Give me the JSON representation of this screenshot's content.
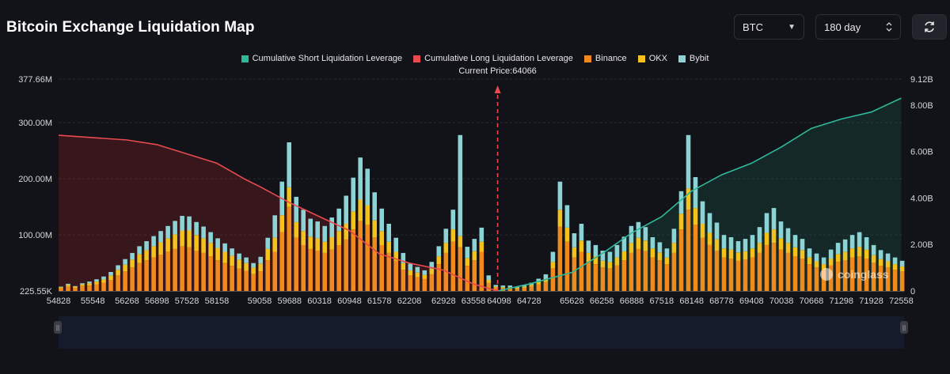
{
  "title": "Bitcoin Exchange Liquidation Map",
  "controls": {
    "coin": "BTC",
    "period": "180 day"
  },
  "icons": {
    "coin_dropdown": "caret-down-icon",
    "period_stepper": "chevron-up-down-icon",
    "refresh": "refresh-icon"
  },
  "colors": {
    "short_cumulative": "#2fb89a",
    "long_cumulative": "#e84a4f",
    "binance": "#f08a1c",
    "okx": "#f4c21c",
    "bybit": "#8cd3d6",
    "background": "#121318"
  },
  "watermark": "coinglass",
  "chart_data": {
    "type": "bar",
    "current_price_label": "Current Price:64066",
    "current_price": 64066,
    "legend": [
      {
        "name": "Cumulative Short Liquidation Leverage",
        "color": "#2fb89a"
      },
      {
        "name": "Cumulative Long Liquidation Leverage",
        "color": "#e84a4f"
      },
      {
        "name": "Binance",
        "color": "#f08a1c"
      },
      {
        "name": "OKX",
        "color": "#f4c21c"
      },
      {
        "name": "Bybit",
        "color": "#8cd3d6"
      }
    ],
    "x_range": [
      54828,
      72618
    ],
    "x_tick_labels": [
      "54828",
      "55548",
      "56268",
      "56898",
      "57528",
      "58158",
      "59058",
      "59688",
      "60318",
      "60948",
      "61578",
      "62208",
      "62928",
      "63558",
      "64098",
      "64728",
      "65628",
      "66258",
      "66888",
      "67518",
      "68148",
      "68778",
      "69408",
      "70038",
      "70668",
      "71298",
      "71928",
      "72558"
    ],
    "y_left_ticks": [
      "225.55K",
      "100.00M",
      "200.00M",
      "300.00M",
      "377.66M"
    ],
    "y_left_range": [
      225550,
      377660000
    ],
    "y_right_ticks": [
      "0",
      "2.00B",
      "4.00B",
      "6.00B",
      "8.00B",
      "9.12B"
    ],
    "y_right_range": [
      0,
      9120000000
    ],
    "stacked_series": [
      {
        "name": "Binance",
        "key": "binance"
      },
      {
        "name": "OKX",
        "key": "okx"
      },
      {
        "name": "Bybit",
        "key": "bybit"
      }
    ],
    "price_levels": [
      54878,
      55028,
      55178,
      55328,
      55478,
      55628,
      55778,
      55928,
      56078,
      56228,
      56378,
      56528,
      56678,
      56828,
      56978,
      57128,
      57278,
      57428,
      57578,
      57728,
      57878,
      58028,
      58178,
      58328,
      58478,
      58628,
      58778,
      58928,
      59078,
      59228,
      59378,
      59528,
      59678,
      59828,
      59978,
      60128,
      60278,
      60428,
      60578,
      60728,
      60878,
      61028,
      61178,
      61328,
      61478,
      61628,
      61778,
      61928,
      62078,
      62228,
      62378,
      62528,
      62678,
      62828,
      62978,
      63128,
      63278,
      63428,
      63578,
      63728,
      63878,
      64028,
      64178,
      64328,
      64478,
      64628,
      64778,
      64928,
      65078,
      65228,
      65378,
      65528,
      65678,
      65828,
      65978,
      66128,
      66278,
      66428,
      66578,
      66728,
      66878,
      67028,
      67178,
      67328,
      67478,
      67628,
      67778,
      67928,
      68078,
      68228,
      68378,
      68528,
      68678,
      68828,
      68978,
      69128,
      69278,
      69428,
      69578,
      69728,
      69878,
      70028,
      70178,
      70328,
      70478,
      70628,
      70778,
      70928,
      71078,
      71228,
      71378,
      71528,
      71678,
      71828,
      71978,
      72128,
      72278,
      72428,
      72578
    ],
    "values_m": {
      "binance": [
        5,
        8,
        6,
        9,
        10,
        12,
        15,
        20,
        28,
        35,
        42,
        50,
        55,
        60,
        65,
        70,
        75,
        80,
        78,
        72,
        68,
        62,
        55,
        50,
        45,
        40,
        36,
        30,
        35,
        55,
        70,
        105,
        150,
        95,
        82,
        75,
        72,
        68,
        74,
        82,
        92,
        110,
        125,
        118,
        96,
        82,
        68,
        54,
        38,
        28,
        25,
        22,
        30,
        48,
        68,
        88,
        78,
        45,
        55,
        70,
        15,
        6,
        5,
        5,
        4,
        6,
        8,
        12,
        16,
        40,
        115,
        88,
        60,
        70,
        52,
        48,
        42,
        40,
        46,
        55,
        68,
        75,
        72,
        60,
        55,
        48,
        68,
        110,
        145,
        118,
        95,
        82,
        72,
        60,
        58,
        54,
        56,
        60,
        68,
        82,
        86,
        74,
        68,
        62,
        58,
        48,
        42,
        38,
        46,
        52,
        55,
        60,
        62,
        58,
        50,
        45,
        42,
        38,
        35
      ],
      "okx": [
        2,
        3,
        2,
        3,
        4,
        5,
        6,
        8,
        10,
        12,
        14,
        16,
        18,
        20,
        22,
        24,
        26,
        28,
        30,
        28,
        26,
        24,
        22,
        20,
        18,
        16,
        14,
        12,
        14,
        20,
        25,
        30,
        35,
        28,
        25,
        22,
        22,
        20,
        22,
        25,
        28,
        32,
        38,
        35,
        30,
        25,
        20,
        16,
        12,
        9,
        8,
        7,
        10,
        14,
        18,
        22,
        20,
        14,
        16,
        18,
        5,
        2,
        2,
        2,
        2,
        2,
        3,
        4,
        6,
        12,
        30,
        25,
        18,
        20,
        16,
        14,
        12,
        12,
        14,
        16,
        18,
        20,
        18,
        16,
        14,
        12,
        18,
        28,
        38,
        30,
        25,
        22,
        20,
        16,
        16,
        15,
        15,
        16,
        18,
        22,
        24,
        20,
        18,
        16,
        15,
        12,
        11,
        10,
        12,
        14,
        15,
        16,
        17,
        16,
        14,
        12,
        11,
        10,
        9
      ],
      "bybit": [
        1,
        2,
        1,
        2,
        3,
        4,
        5,
        6,
        8,
        10,
        12,
        14,
        16,
        18,
        20,
        22,
        24,
        26,
        25,
        23,
        21,
        19,
        17,
        15,
        13,
        11,
        10,
        8,
        12,
        20,
        40,
        60,
        80,
        45,
        38,
        32,
        30,
        28,
        35,
        40,
        50,
        60,
        75,
        65,
        50,
        40,
        32,
        25,
        18,
        12,
        10,
        8,
        12,
        18,
        25,
        35,
        180,
        20,
        22,
        25,
        8,
        3,
        3,
        3,
        2,
        3,
        4,
        6,
        8,
        18,
        50,
        40,
        25,
        30,
        22,
        20,
        18,
        18,
        22,
        26,
        30,
        28,
        24,
        20,
        18,
        16,
        25,
        40,
        95,
        55,
        40,
        35,
        30,
        24,
        22,
        20,
        22,
        24,
        28,
        35,
        38,
        30,
        26,
        22,
        20,
        16,
        14,
        12,
        16,
        20,
        22,
        24,
        26,
        22,
        18,
        16,
        14,
        12,
        10
      ]
    },
    "cumulative_long_b": [
      [
        54828,
        6.7
      ],
      [
        55548,
        6.6
      ],
      [
        56268,
        6.5
      ],
      [
        56898,
        6.3
      ],
      [
        57528,
        5.9
      ],
      [
        58158,
        5.5
      ],
      [
        58758,
        4.8
      ],
      [
        59058,
        4.5
      ],
      [
        59688,
        3.8
      ],
      [
        60318,
        3.2
      ],
      [
        60948,
        2.6
      ],
      [
        61578,
        1.6
      ],
      [
        62208,
        1.2
      ],
      [
        62928,
        0.9
      ],
      [
        63558,
        0.3
      ],
      [
        64066,
        0
      ]
    ],
    "cumulative_short_b": [
      [
        64066,
        0
      ],
      [
        64728,
        0.3
      ],
      [
        65628,
        0.8
      ],
      [
        66258,
        1.6
      ],
      [
        66888,
        2.5
      ],
      [
        67518,
        3.2
      ],
      [
        68148,
        4.3
      ],
      [
        68778,
        5.0
      ],
      [
        69408,
        5.5
      ],
      [
        70038,
        6.2
      ],
      [
        70668,
        7.0
      ],
      [
        71298,
        7.4
      ],
      [
        71928,
        7.7
      ],
      [
        72558,
        8.3
      ]
    ]
  }
}
